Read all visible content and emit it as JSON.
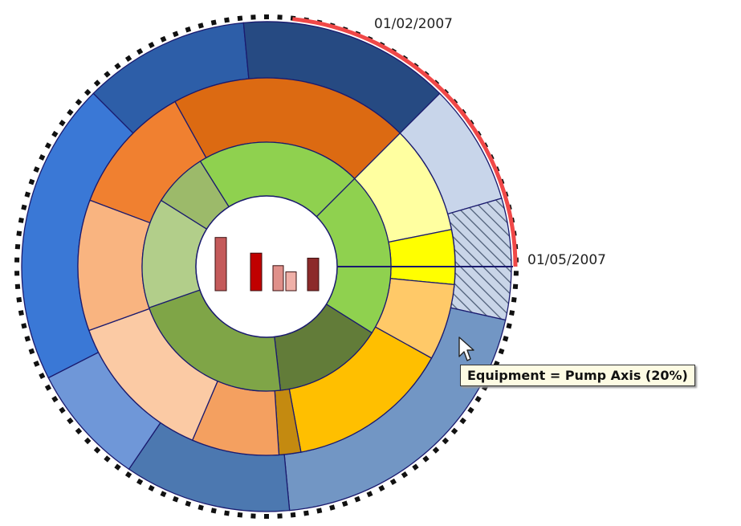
{
  "chart_data": {
    "type": "sunburst",
    "rings": {
      "inner": [
        {
          "value": 3.0,
          "color": "#8fd14f"
        },
        {
          "value": 2.0,
          "color": "#627c39"
        },
        {
          "value": 3.0,
          "color": "#7fa547"
        },
        {
          "value": 2.0,
          "color": "#b2ce8a"
        },
        {
          "value": 1.0,
          "color": "#9cba6a"
        },
        {
          "value": 3.0,
          "color": "#8fd14f"
        }
      ],
      "middle": [
        {
          "value": 1.0,
          "color": "#ffffa0"
        },
        {
          "value": 0.5,
          "color": "#ffff00"
        },
        {
          "value": 0.7,
          "color": "#ffc968"
        },
        {
          "value": 1.5,
          "color": "#ffbf00"
        },
        {
          "value": 0.2,
          "color": "#c48a10"
        },
        {
          "value": 0.8,
          "color": "#f4a060"
        },
        {
          "value": 1.4,
          "color": "#fbcaa4"
        },
        {
          "value": 1.2,
          "color": "#f9b480"
        },
        {
          "value": 1.2,
          "color": "#f08030"
        },
        {
          "value": 2.2,
          "color": "#dc6a12"
        }
      ],
      "outer": [
        {
          "value": 0.8,
          "color": "#c8d5ea",
          "hatch": false
        },
        {
          "value": 0.8,
          "color": "#b8c8e2",
          "hatch": true
        },
        {
          "value": 2.0,
          "color": "#7296c4",
          "hatch": false
        },
        {
          "value": 1.1,
          "color": "#4c78b0",
          "hatch": false
        },
        {
          "value": 0.8,
          "color": "#6f97d8",
          "hatch": false
        },
        {
          "value": 2.0,
          "color": "#3a78d6",
          "hatch": false
        },
        {
          "value": 1.1,
          "color": "#2d5ea8",
          "hatch": false
        },
        {
          "value": 1.4,
          "color": "#264a82",
          "hatch": false
        }
      ]
    },
    "highlight_color": "#f04848",
    "date_start": "01/02/2007",
    "date_end": "01/05/2007"
  },
  "tooltip": {
    "text": "Equipment = Pump Axis (20%)"
  },
  "center_icon": {
    "bars": [
      0.85,
      0.6,
      0.4,
      0.3,
      0.52
    ],
    "colors": [
      "#c45a5a",
      "#c00000",
      "#e0908a",
      "#f0b0a8",
      "#8c2a2a"
    ]
  }
}
